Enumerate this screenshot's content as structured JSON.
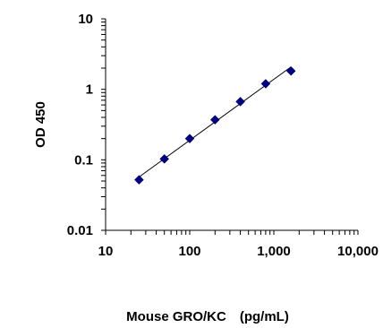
{
  "chart_data": {
    "type": "scatter",
    "xlabel": "Mouse GRO/KC　(pg/mL)",
    "ylabel": "OD 450",
    "x_scale": "log",
    "y_scale": "log",
    "xlim": [
      10,
      10000
    ],
    "ylim": [
      0.01,
      10
    ],
    "x_ticks": [
      10,
      100,
      1000,
      10000
    ],
    "x_tick_labels": [
      "10",
      "100",
      "1,000",
      "10,000"
    ],
    "y_ticks": [
      0.01,
      0.1,
      1,
      10
    ],
    "y_tick_labels": [
      "0.01",
      "0.1",
      "1",
      "10"
    ],
    "grid": false,
    "legend": "none",
    "fit_line": true,
    "series": [
      {
        "x": [
          25,
          50,
          100,
          200,
          400,
          800,
          1600
        ],
        "y": [
          0.052,
          0.103,
          0.2,
          0.37,
          0.67,
          1.2,
          1.82
        ]
      }
    ],
    "colors": {
      "marker": "#000080",
      "line": "#000000",
      "axis": "#000000"
    }
  }
}
